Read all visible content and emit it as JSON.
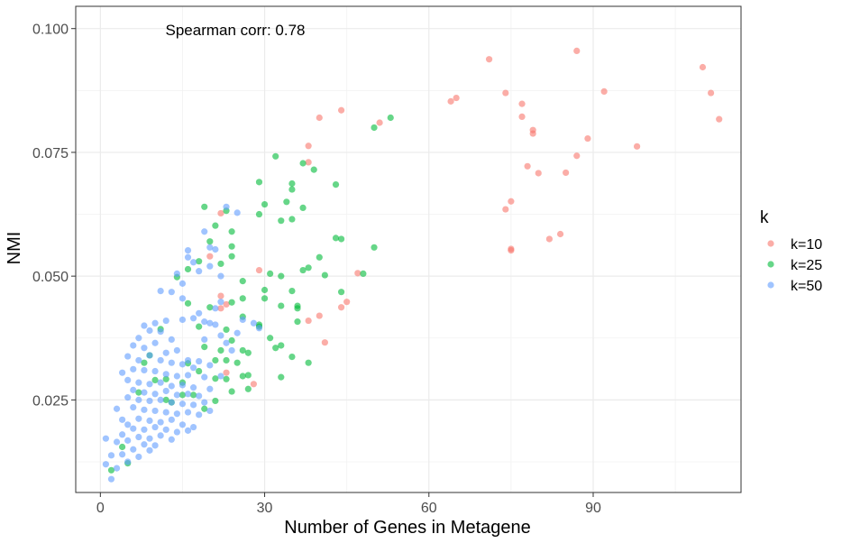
{
  "chart_data": {
    "type": "scatter",
    "xlabel": "Number of Genes in Metagene",
    "ylabel": "NMI",
    "xlim": [
      -4.5,
      117
    ],
    "ylim": [
      0.0063,
      0.1045
    ],
    "x_ticks": [
      0,
      30,
      60,
      90
    ],
    "x_tick_labels": [
      "0",
      "30",
      "60",
      "90"
    ],
    "y_ticks": [
      0.025,
      0.05,
      0.075,
      0.1
    ],
    "y_tick_labels": [
      "0.025",
      "0.050",
      "0.075",
      "0.100"
    ],
    "grid": true,
    "legend_title": "k",
    "legend_position": "right",
    "annotation": "Spearman corr: 0.78",
    "series": [
      {
        "name": "k=10",
        "color": "#F8766D",
        "points": [
          [
            87,
            0.0955
          ],
          [
            71,
            0.0938
          ],
          [
            110,
            0.0922
          ],
          [
            111.5,
            0.087
          ],
          [
            92,
            0.0873
          ],
          [
            74,
            0.087
          ],
          [
            65,
            0.086
          ],
          [
            64,
            0.0853
          ],
          [
            77,
            0.0848
          ],
          [
            113,
            0.0817
          ],
          [
            77,
            0.0822
          ],
          [
            40,
            0.082
          ],
          [
            44,
            0.0835
          ],
          [
            79,
            0.0795
          ],
          [
            79,
            0.0788
          ],
          [
            89,
            0.0778
          ],
          [
            98,
            0.0762
          ],
          [
            87,
            0.0743
          ],
          [
            78,
            0.0722
          ],
          [
            80,
            0.0708
          ],
          [
            85,
            0.0709
          ],
          [
            38,
            0.0763
          ],
          [
            38,
            0.073
          ],
          [
            75,
            0.0651
          ],
          [
            74,
            0.0635
          ],
          [
            84,
            0.0585
          ],
          [
            82,
            0.0575
          ],
          [
            75,
            0.0555
          ],
          [
            75,
            0.0552
          ],
          [
            22,
            0.0627
          ],
          [
            20,
            0.054
          ],
          [
            29,
            0.0512
          ],
          [
            47,
            0.0506
          ],
          [
            45,
            0.0448
          ],
          [
            44,
            0.0437
          ],
          [
            40,
            0.042
          ],
          [
            38,
            0.041
          ],
          [
            41,
            0.0366
          ],
          [
            22,
            0.046
          ],
          [
            23,
            0.0443
          ],
          [
            22,
            0.0435
          ],
          [
            23,
            0.0305
          ],
          [
            28,
            0.0282
          ],
          [
            51,
            0.081
          ]
        ]
      },
      {
        "name": "k=25",
        "color": "#00BA38",
        "points": [
          [
            53,
            0.082
          ],
          [
            50,
            0.08
          ],
          [
            32,
            0.0742
          ],
          [
            39,
            0.0715
          ],
          [
            37,
            0.0728
          ],
          [
            35,
            0.0687
          ],
          [
            43,
            0.0685
          ],
          [
            35,
            0.0675
          ],
          [
            29,
            0.069
          ],
          [
            34,
            0.065
          ],
          [
            30,
            0.0645
          ],
          [
            19,
            0.064
          ],
          [
            23,
            0.0632
          ],
          [
            37,
            0.0638
          ],
          [
            33,
            0.0612
          ],
          [
            35,
            0.0615
          ],
          [
            29,
            0.0625
          ],
          [
            21,
            0.0602
          ],
          [
            24,
            0.059
          ],
          [
            43,
            0.0577
          ],
          [
            44,
            0.0575
          ],
          [
            50,
            0.0558
          ],
          [
            24,
            0.056
          ],
          [
            20,
            0.057
          ],
          [
            24,
            0.054
          ],
          [
            40,
            0.0538
          ],
          [
            22,
            0.0525
          ],
          [
            18,
            0.053
          ],
          [
            16,
            0.0514
          ],
          [
            38,
            0.0517
          ],
          [
            37,
            0.0512
          ],
          [
            31,
            0.0505
          ],
          [
            33,
            0.05
          ],
          [
            41,
            0.0502
          ],
          [
            48,
            0.0505
          ],
          [
            14,
            0.0498
          ],
          [
            26,
            0.049
          ],
          [
            30,
            0.0472
          ],
          [
            35,
            0.047
          ],
          [
            26,
            0.0455
          ],
          [
            30,
            0.0455
          ],
          [
            44,
            0.0468
          ],
          [
            16,
            0.0445
          ],
          [
            24,
            0.0447
          ],
          [
            20,
            0.0437
          ],
          [
            36,
            0.044
          ],
          [
            36,
            0.0435
          ],
          [
            26,
            0.0418
          ],
          [
            29,
            0.0402
          ],
          [
            29,
            0.0398
          ],
          [
            33,
            0.044
          ],
          [
            36,
            0.0408
          ],
          [
            18,
            0.0398
          ],
          [
            23,
            0.0392
          ],
          [
            19,
            0.0357
          ],
          [
            22,
            0.035
          ],
          [
            23,
            0.033
          ],
          [
            26,
            0.035
          ],
          [
            27,
            0.0345
          ],
          [
            32,
            0.0355
          ],
          [
            24,
            0.037
          ],
          [
            31,
            0.0375
          ],
          [
            33,
            0.036
          ],
          [
            35,
            0.0337
          ],
          [
            38,
            0.0325
          ],
          [
            25,
            0.0325
          ],
          [
            21,
            0.033
          ],
          [
            16,
            0.0324
          ],
          [
            18,
            0.0308
          ],
          [
            21,
            0.0293
          ],
          [
            23,
            0.0292
          ],
          [
            26,
            0.0298
          ],
          [
            27,
            0.03
          ],
          [
            33,
            0.0296
          ],
          [
            27,
            0.0272
          ],
          [
            24,
            0.0267
          ],
          [
            21,
            0.0248
          ],
          [
            19,
            0.0232
          ],
          [
            13,
            0.0245
          ],
          [
            12,
            0.025
          ],
          [
            17,
            0.026
          ],
          [
            15,
            0.0285
          ],
          [
            10,
            0.029
          ],
          [
            8,
            0.0325
          ],
          [
            11,
            0.0393
          ],
          [
            9,
            0.034
          ],
          [
            2,
            0.0108
          ],
          [
            5,
            0.0122
          ],
          [
            4,
            0.0155
          ],
          [
            15,
            0.026
          ],
          [
            12,
            0.0292
          ],
          [
            7,
            0.0265
          ]
        ]
      },
      {
        "name": "k=50",
        "color": "#619CFF",
        "points": [
          [
            23,
            0.064
          ],
          [
            25,
            0.0628
          ],
          [
            19,
            0.059
          ],
          [
            16,
            0.0552
          ],
          [
            20,
            0.0558
          ],
          [
            21,
            0.0554
          ],
          [
            16,
            0.0538
          ],
          [
            17,
            0.0528
          ],
          [
            20,
            0.052
          ],
          [
            22,
            0.05
          ],
          [
            18,
            0.051
          ],
          [
            14,
            0.0505
          ],
          [
            15,
            0.0485
          ],
          [
            11,
            0.047
          ],
          [
            13,
            0.0468
          ],
          [
            15,
            0.0455
          ],
          [
            22,
            0.0448
          ],
          [
            18,
            0.0425
          ],
          [
            21,
            0.0435
          ],
          [
            15,
            0.0412
          ],
          [
            17,
            0.0415
          ],
          [
            19,
            0.0408
          ],
          [
            20,
            0.0405
          ],
          [
            21,
            0.0402
          ],
          [
            12,
            0.041
          ],
          [
            10,
            0.0405
          ],
          [
            8,
            0.04
          ],
          [
            9,
            0.039
          ],
          [
            7,
            0.0375
          ],
          [
            11,
            0.0388
          ],
          [
            13,
            0.0372
          ],
          [
            10,
            0.0365
          ],
          [
            6,
            0.036
          ],
          [
            8,
            0.0355
          ],
          [
            14,
            0.035
          ],
          [
            12,
            0.0345
          ],
          [
            9,
            0.034
          ],
          [
            5,
            0.0338
          ],
          [
            7,
            0.033
          ],
          [
            11,
            0.033
          ],
          [
            13,
            0.0325
          ],
          [
            16,
            0.033
          ],
          [
            15,
            0.0322
          ],
          [
            18,
            0.0328
          ],
          [
            20,
            0.032
          ],
          [
            17,
            0.0315
          ],
          [
            6,
            0.0312
          ],
          [
            4,
            0.0305
          ],
          [
            8,
            0.031
          ],
          [
            10,
            0.0308
          ],
          [
            12,
            0.0302
          ],
          [
            14,
            0.0298
          ],
          [
            16,
            0.03
          ],
          [
            19,
            0.0296
          ],
          [
            22,
            0.0298
          ],
          [
            5,
            0.029
          ],
          [
            7,
            0.0285
          ],
          [
            9,
            0.0282
          ],
          [
            11,
            0.0285
          ],
          [
            13,
            0.0278
          ],
          [
            15,
            0.028
          ],
          [
            17,
            0.0275
          ],
          [
            20,
            0.0272
          ],
          [
            6,
            0.027
          ],
          [
            8,
            0.0265
          ],
          [
            10,
            0.0262
          ],
          [
            12,
            0.0268
          ],
          [
            14,
            0.026
          ],
          [
            16,
            0.0262
          ],
          [
            18,
            0.0258
          ],
          [
            5,
            0.0255
          ],
          [
            7,
            0.025
          ],
          [
            9,
            0.0248
          ],
          [
            11,
            0.025
          ],
          [
            13,
            0.0245
          ],
          [
            15,
            0.0242
          ],
          [
            17,
            0.024
          ],
          [
            19,
            0.0245
          ],
          [
            3,
            0.0232
          ],
          [
            6,
            0.0235
          ],
          [
            8,
            0.023
          ],
          [
            10,
            0.0228
          ],
          [
            12,
            0.0225
          ],
          [
            14,
            0.0222
          ],
          [
            16,
            0.0225
          ],
          [
            18,
            0.022
          ],
          [
            4,
            0.021
          ],
          [
            7,
            0.0212
          ],
          [
            9,
            0.0208
          ],
          [
            11,
            0.0205
          ],
          [
            13,
            0.021
          ],
          [
            15,
            0.02
          ],
          [
            17,
            0.0195
          ],
          [
            20,
            0.0228
          ],
          [
            5,
            0.02
          ],
          [
            6,
            0.0192
          ],
          [
            8,
            0.019
          ],
          [
            10,
            0.0195
          ],
          [
            12,
            0.019
          ],
          [
            14,
            0.0185
          ],
          [
            16,
            0.0188
          ],
          [
            4,
            0.018
          ],
          [
            7,
            0.0175
          ],
          [
            9,
            0.0172
          ],
          [
            11,
            0.0178
          ],
          [
            13,
            0.017
          ],
          [
            1,
            0.0172
          ],
          [
            3,
            0.0165
          ],
          [
            5,
            0.0168
          ],
          [
            8,
            0.016
          ],
          [
            10,
            0.0158
          ],
          [
            6,
            0.015
          ],
          [
            9,
            0.0148
          ],
          [
            4,
            0.014
          ],
          [
            7,
            0.0135
          ],
          [
            2,
            0.0138
          ],
          [
            5,
            0.0125
          ],
          [
            1,
            0.012
          ],
          [
            3,
            0.0112
          ],
          [
            2,
            0.009
          ],
          [
            26,
            0.0412
          ],
          [
            28,
            0.0405
          ],
          [
            25,
            0.0385
          ],
          [
            29,
            0.0395
          ],
          [
            24,
            0.035
          ],
          [
            22,
            0.038
          ],
          [
            19,
            0.0372
          ],
          [
            23,
            0.0365
          ]
        ]
      }
    ]
  }
}
